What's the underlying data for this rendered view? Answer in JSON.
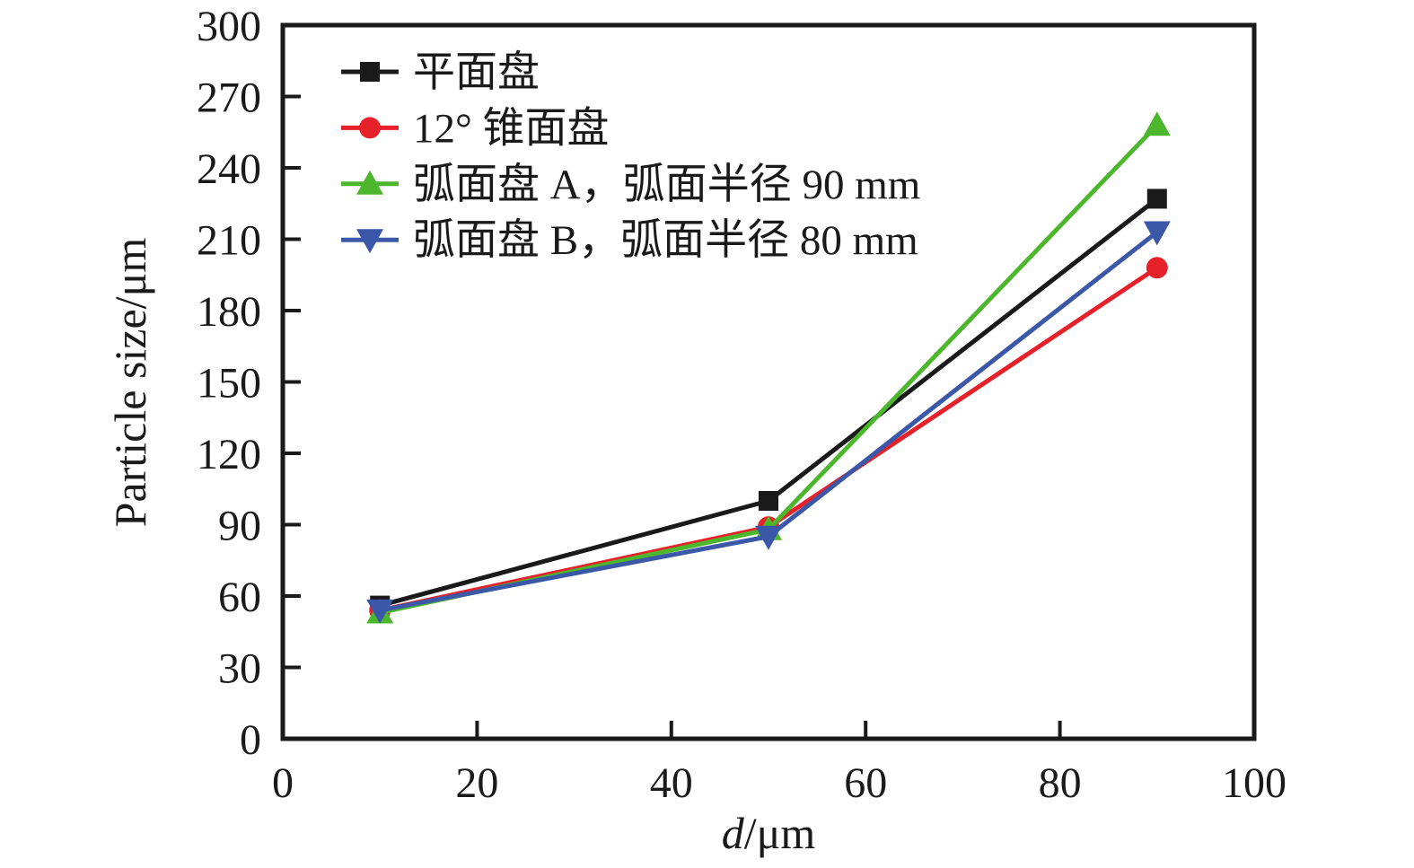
{
  "chart_data": {
    "type": "line",
    "x": [
      10,
      50,
      90
    ],
    "series": [
      {
        "name": "平面盘",
        "marker": "square",
        "color": "#1a1a1a",
        "values": [
          56,
          100,
          227
        ]
      },
      {
        "name": "12° 锥面盘",
        "marker": "circle",
        "color": "#e62129",
        "values": [
          54,
          89,
          198
        ]
      },
      {
        "name": "弧面盘 A，弧面半径 90 mm",
        "marker": "triangle-up",
        "color": "#4cb72d",
        "values": [
          53,
          88,
          258
        ]
      },
      {
        "name": "弧面盘 B，弧面半径 80 mm",
        "marker": "triangle-down",
        "color": "#3a57a8",
        "values": [
          54,
          85,
          213
        ]
      }
    ],
    "title": "",
    "xlabel": "d/μm",
    "xlabel_var": "d",
    "xlabel_unit": "/μm",
    "ylabel": "Particle size/μm",
    "xlim": [
      0,
      100
    ],
    "ylim": [
      0,
      300
    ],
    "x_ticks": [
      0,
      20,
      40,
      60,
      80,
      100
    ],
    "y_ticks": [
      0,
      30,
      60,
      90,
      120,
      150,
      180,
      210,
      240,
      270,
      300
    ],
    "grid": false,
    "legend_position": "top-left-inside",
    "axis_color": "#1a1a1a"
  }
}
